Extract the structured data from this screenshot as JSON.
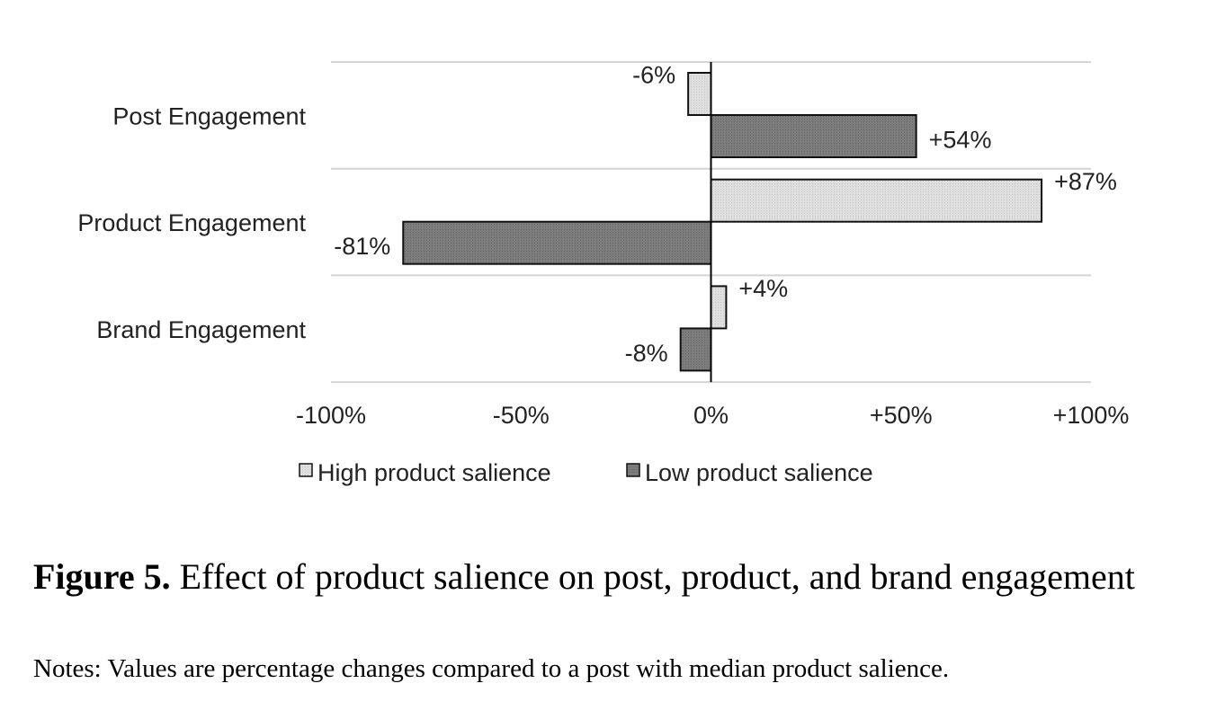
{
  "chart_data": {
    "type": "bar",
    "orientation": "horizontal",
    "categories": [
      "Post Engagement",
      "Product Engagement",
      "Brand Engagement"
    ],
    "series": [
      {
        "name": "High product salience",
        "values": [
          -6,
          87,
          4
        ],
        "labels": [
          "-6%",
          "+87%",
          "+4%"
        ],
        "color": "#dcdcdc"
      },
      {
        "name": "Low product salience",
        "values": [
          54,
          -81,
          -8
        ],
        "labels": [
          "+54%",
          "-81%",
          "-8%"
        ],
        "color": "#7a7a7a"
      }
    ],
    "x_ticks": [
      {
        "value": -100,
        "label": "-100%"
      },
      {
        "value": -50,
        "label": "-50%"
      },
      {
        "value": 0,
        "label": "0%"
      },
      {
        "value": 50,
        "label": "+50%"
      },
      {
        "value": 100,
        "label": "+100%"
      }
    ],
    "xlim": [
      -100,
      100
    ],
    "grid": "horizontal separators between categories",
    "legend_position": "bottom"
  },
  "caption": {
    "figure_label": "Figure 5.",
    "text": "Effect of product salience on post, product, and brand engagement",
    "notes": "Notes: Values are percentage changes compared to a post with median product salience."
  }
}
